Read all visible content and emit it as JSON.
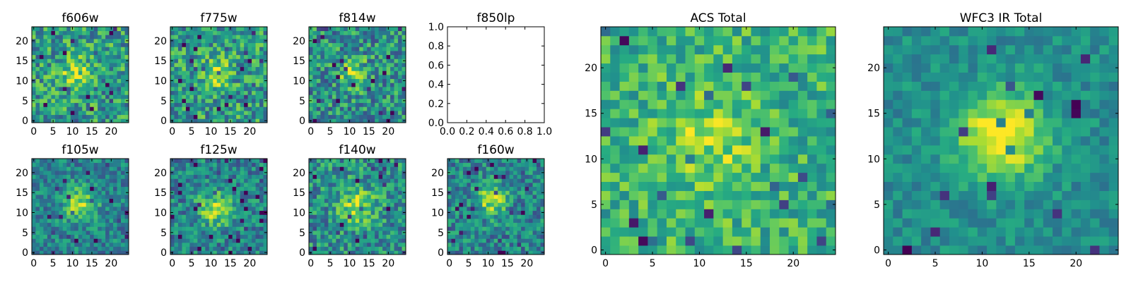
{
  "chart_data": {
    "type": "heatmap",
    "colormap": "viridis",
    "colors": {
      "low": "#440154",
      "mid": "#21918c",
      "high": "#fde725",
      "frame": "#000000",
      "background": "#ffffff"
    },
    "panels": [
      {
        "id": "f606w",
        "title": "f606w",
        "grid": [
          25,
          24
        ],
        "xlim": [
          -0.5,
          24.5
        ],
        "ylim": [
          -0.5,
          23.5
        ],
        "xticks": [
          0,
          5,
          10,
          15,
          20
        ],
        "yticks": [
          0,
          5,
          10,
          15,
          20
        ],
        "xtick_labels": [
          "0",
          "5",
          "10",
          "15",
          "20"
        ],
        "ytick_labels": [
          "0",
          "5",
          "10",
          "15",
          "20"
        ],
        "source": {
          "x": 11,
          "y": 12,
          "sigma": 2.8,
          "amp": 0.3
        },
        "noise": 0.55,
        "base": 0.55,
        "seed": 11
      },
      {
        "id": "f775w",
        "title": "f775w",
        "grid": [
          25,
          24
        ],
        "xlim": [
          -0.5,
          24.5
        ],
        "ylim": [
          -0.5,
          23.5
        ],
        "xticks": [
          0,
          5,
          10,
          15,
          20
        ],
        "yticks": [
          0,
          5,
          10,
          15,
          20
        ],
        "xtick_labels": [
          "0",
          "5",
          "10",
          "15",
          "20"
        ],
        "ytick_labels": [
          "0",
          "5",
          "10",
          "15",
          "20"
        ],
        "source": {
          "x": 11,
          "y": 12,
          "sigma": 2.8,
          "amp": 0.3
        },
        "noise": 0.55,
        "base": 0.55,
        "seed": 23
      },
      {
        "id": "f814w",
        "title": "f814w",
        "grid": [
          25,
          24
        ],
        "xlim": [
          -0.5,
          24.5
        ],
        "ylim": [
          -0.5,
          23.5
        ],
        "xticks": [
          0,
          5,
          10,
          15,
          20
        ],
        "yticks": [
          0,
          5,
          10,
          15,
          20
        ],
        "xtick_labels": [
          "0",
          "5",
          "10",
          "15",
          "20"
        ],
        "ytick_labels": [
          "0",
          "5",
          "10",
          "15",
          "20"
        ],
        "source": {
          "x": 11,
          "y": 12,
          "sigma": 2.5,
          "amp": 0.35
        },
        "noise": 0.55,
        "base": 0.5,
        "seed": 37
      },
      {
        "id": "f850lp",
        "title": "f850lp",
        "empty": true,
        "xlim": [
          0,
          1
        ],
        "ylim": [
          0,
          1
        ],
        "xticks": [
          0,
          0.2,
          0.4,
          0.6,
          0.8,
          1.0
        ],
        "yticks": [
          0,
          0.2,
          0.4,
          0.6,
          0.8,
          1.0
        ],
        "xtick_labels": [
          "0.0",
          "0.2",
          "0.4",
          "0.6",
          "0.8",
          "1.0"
        ],
        "ytick_labels": [
          "0.0",
          "0.2",
          "0.4",
          "0.6",
          "0.8",
          "1.0"
        ]
      },
      {
        "id": "f105w",
        "title": "f105w",
        "grid": [
          25,
          24
        ],
        "xlim": [
          -0.5,
          24.5
        ],
        "ylim": [
          -0.5,
          23.5
        ],
        "xticks": [
          0,
          5,
          10,
          15,
          20
        ],
        "yticks": [
          0,
          5,
          10,
          15,
          20
        ],
        "xtick_labels": [
          "0",
          "5",
          "10",
          "15",
          "20"
        ],
        "ytick_labels": [
          "0",
          "5",
          "10",
          "15",
          "20"
        ],
        "source": {
          "x": 12,
          "y": 12,
          "sigma": 3.0,
          "amp": 0.4
        },
        "noise": 0.4,
        "base": 0.45,
        "seed": 53
      },
      {
        "id": "f125w",
        "title": "f125w",
        "grid": [
          25,
          24
        ],
        "xlim": [
          -0.5,
          24.5
        ],
        "ylim": [
          -0.5,
          23.5
        ],
        "xticks": [
          0,
          5,
          10,
          15,
          20
        ],
        "yticks": [
          0,
          5,
          10,
          15,
          20
        ],
        "xtick_labels": [
          "0",
          "5",
          "10",
          "15",
          "20"
        ],
        "ytick_labels": [
          "0",
          "5",
          "10",
          "15",
          "20"
        ],
        "source": {
          "x": 11,
          "y": 11,
          "sigma": 3.0,
          "amp": 0.4
        },
        "noise": 0.45,
        "base": 0.45,
        "seed": 71
      },
      {
        "id": "f140w",
        "title": "f140w",
        "grid": [
          25,
          24
        ],
        "xlim": [
          -0.5,
          24.5
        ],
        "ylim": [
          -0.5,
          23.5
        ],
        "xticks": [
          0,
          5,
          10,
          15,
          20
        ],
        "yticks": [
          0,
          5,
          10,
          15,
          20
        ],
        "xtick_labels": [
          "0",
          "5",
          "10",
          "15",
          "20"
        ],
        "ytick_labels": [
          "0",
          "5",
          "10",
          "15",
          "20"
        ],
        "source": {
          "x": 12,
          "y": 12,
          "sigma": 3.2,
          "amp": 0.35
        },
        "noise": 0.5,
        "base": 0.5,
        "seed": 89
      },
      {
        "id": "f160w",
        "title": "f160w",
        "grid": [
          25,
          24
        ],
        "xlim": [
          -0.5,
          24.5
        ],
        "ylim": [
          -0.5,
          23.5
        ],
        "xticks": [
          0,
          5,
          10,
          15,
          20
        ],
        "yticks": [
          0,
          5,
          10,
          15,
          20
        ],
        "xtick_labels": [
          "0",
          "5",
          "10",
          "15",
          "20"
        ],
        "ytick_labels": [
          "0",
          "5",
          "10",
          "15",
          "20"
        ],
        "source": {
          "x": 11,
          "y": 13,
          "sigma": 2.6,
          "amp": 0.45
        },
        "noise": 0.45,
        "base": 0.45,
        "seed": 97
      },
      {
        "id": "acs-total",
        "title": "ACS Total",
        "grid": [
          25,
          25
        ],
        "xlim": [
          -0.5,
          24.5
        ],
        "ylim": [
          -0.5,
          24.5
        ],
        "xticks": [
          0,
          5,
          10,
          15,
          20
        ],
        "yticks": [
          0,
          5,
          10,
          15,
          20
        ],
        "xtick_labels": [
          "0",
          "5",
          "10",
          "15",
          "20"
        ],
        "ytick_labels": [
          "0",
          "5",
          "10",
          "15",
          "20"
        ],
        "source": {
          "x": 11,
          "y": 12,
          "sigma": 3.5,
          "amp": 0.2
        },
        "noise": 0.4,
        "base": 0.65,
        "seed": 131
      },
      {
        "id": "wfc3-ir-total",
        "title": "WFC3 IR Total",
        "grid": [
          25,
          25
        ],
        "xlim": [
          -0.5,
          24.5
        ],
        "ylim": [
          -0.5,
          24.5
        ],
        "xticks": [
          0,
          5,
          10,
          15,
          20
        ],
        "yticks": [
          0,
          5,
          10,
          15,
          20
        ],
        "xtick_labels": [
          "0",
          "5",
          "10",
          "15",
          "20"
        ],
        "ytick_labels": [
          "0",
          "5",
          "10",
          "15",
          "20"
        ],
        "source": {
          "x": 12,
          "y": 12.5,
          "sigma": 3.2,
          "amp": 0.55
        },
        "noise": 0.25,
        "base": 0.5,
        "seed": 157
      }
    ]
  }
}
